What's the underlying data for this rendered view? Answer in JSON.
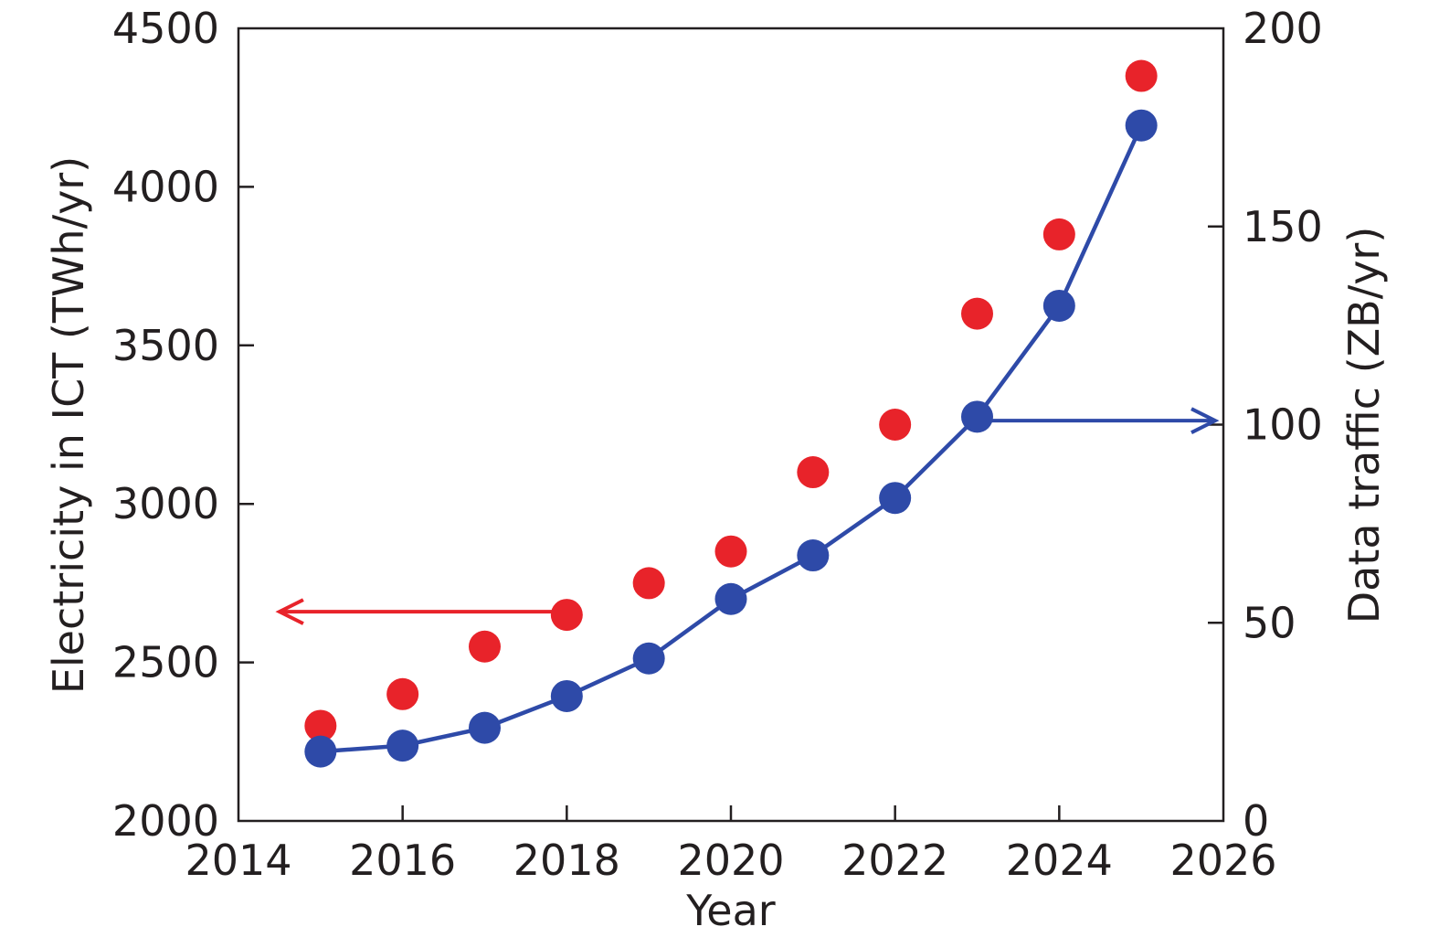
{
  "chart_data": {
    "type": "scatter",
    "xlabel": "Year",
    "ylabel_left": "Electricity in ICT (TWh/yr)",
    "ylabel_right": "Data traffic (ZB/yr)",
    "xlim": [
      2014,
      2026
    ],
    "ylim_left": [
      2000,
      4500
    ],
    "ylim_right": [
      0,
      200
    ],
    "x_ticks": [
      "2014",
      "2016",
      "2018",
      "2020",
      "2022",
      "2024",
      "2026"
    ],
    "y_left_ticks": [
      "2000",
      "2500",
      "3000",
      "3500",
      "4000",
      "4500"
    ],
    "y_right_ticks": [
      "0",
      "50",
      "100",
      "150",
      "200"
    ],
    "grid": false,
    "series": [
      {
        "axis": "left",
        "marker": "circle",
        "line": false,
        "color": "#e8232a",
        "x": [
          2015,
          2016,
          2017,
          2018,
          2019,
          2020,
          2021,
          2022,
          2023,
          2024,
          2025
        ],
        "values": [
          2300,
          2400,
          2550,
          2650,
          2750,
          2850,
          3100,
          3250,
          3600,
          3850,
          4350
        ]
      },
      {
        "axis": "right",
        "marker": "circle",
        "line": true,
        "color": "#2e4aa8",
        "x": [
          2015,
          2016,
          2017,
          2018,
          2019,
          2020,
          2021,
          2022,
          2023,
          2024,
          2025
        ],
        "values": [
          17.5,
          19,
          23.5,
          31.5,
          41,
          56,
          67,
          81.5,
          102,
          130,
          175.5
        ]
      }
    ],
    "annotations": [
      {
        "type": "arrow",
        "direction": "left",
        "color": "#e8232a",
        "x_start": 2018,
        "x_end": 2014.5,
        "y": 2660,
        "axis": "left"
      },
      {
        "type": "arrow",
        "direction": "right",
        "color": "#2e4aa8",
        "x_start": 2023,
        "x_end": 2025.9,
        "y": 101,
        "axis": "right"
      }
    ]
  }
}
